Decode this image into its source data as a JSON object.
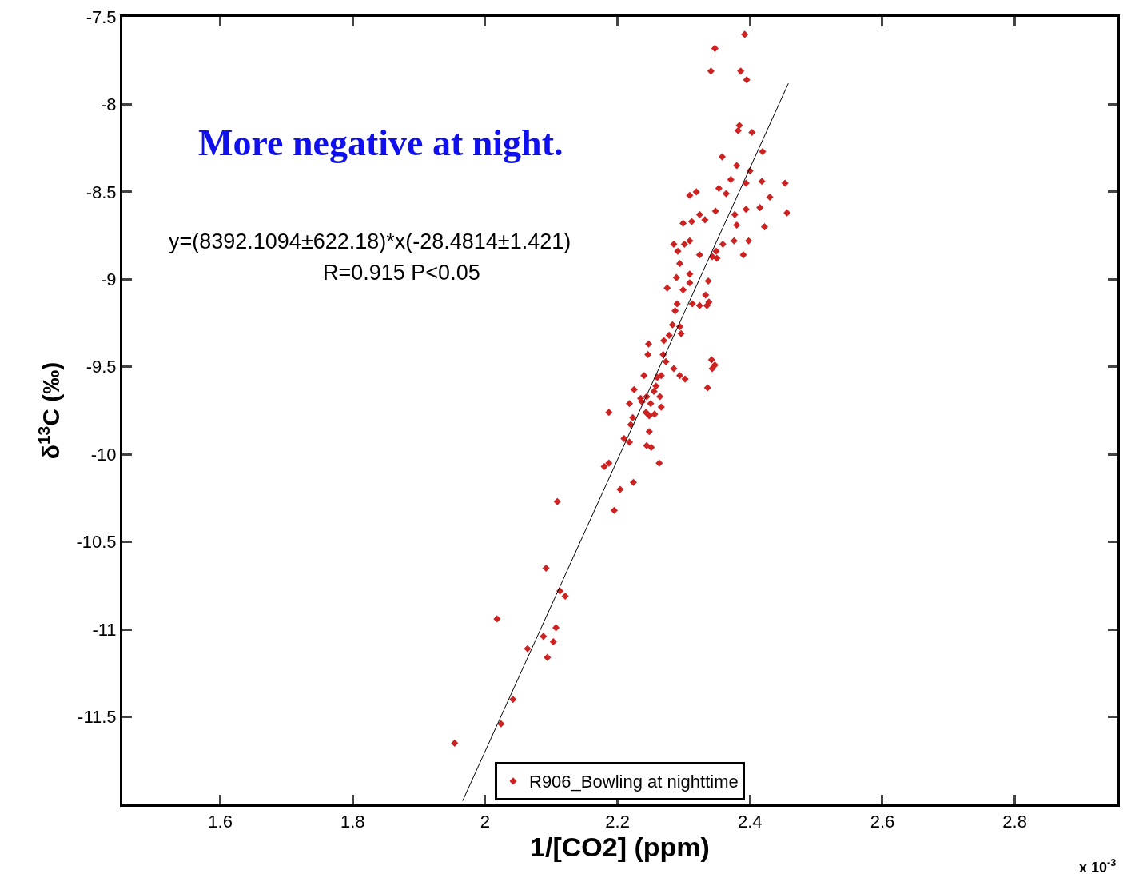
{
  "chart_data": {
    "type": "scatter",
    "xlabel": "1/[CO2] (ppm)",
    "ylabel": "δ$^{13}$C (‰)",
    "xlim": [
      1.452,
      2.955
    ],
    "xticks": [
      1.6,
      1.8,
      2,
      2.2,
      2.4,
      2.6,
      2.8
    ],
    "ylim": [
      -12,
      -7.5
    ],
    "yticks": [
      -7.5,
      -8,
      -8.5,
      -9,
      -9.5,
      -10,
      -10.5,
      -11,
      -11.5
    ],
    "grid": false,
    "legend": "bottom",
    "marker": "diamond",
    "annotations": [
      "More negative at night.",
      "y=(8392.1094±622.18)*x(-28.4814±1.421)",
      "R=0.915 P<0.05",
      "x 10$^{-3}$"
    ],
    "series": [
      {
        "name": "R906_Bowling at nighttime",
        "color": "#cc2222",
        "x": [
          2.392,
          2.347,
          2.341,
          2.386,
          2.395,
          2.384,
          2.382,
          2.403,
          2.419,
          2.358,
          2.38,
          2.4,
          2.353,
          2.371,
          2.394,
          2.418,
          2.453,
          2.309,
          2.319,
          2.364,
          2.43,
          2.324,
          2.348,
          2.38,
          2.394,
          2.415,
          2.377,
          2.456,
          2.299,
          2.312,
          2.332,
          2.359,
          2.376,
          2.398,
          2.422,
          2.309,
          2.39,
          2.349,
          2.35,
          2.301,
          2.324,
          2.343,
          2.285,
          2.291,
          2.294,
          2.309,
          2.337,
          2.289,
          2.309,
          2.333,
          2.338,
          2.299,
          2.275,
          2.29,
          2.313,
          2.324,
          2.335,
          2.287,
          2.283,
          2.294,
          2.278,
          2.27,
          2.247,
          2.296,
          2.269,
          2.246,
          2.273,
          2.285,
          2.266,
          2.26,
          2.24,
          2.258,
          2.294,
          2.302,
          2.342,
          2.347,
          2.343,
          2.336,
          2.244,
          2.235,
          2.225,
          2.237,
          2.25,
          2.255,
          2.264,
          2.266,
          2.187,
          2.218,
          2.223,
          2.243,
          2.248,
          2.22,
          2.21,
          2.256,
          2.248,
          2.244,
          2.251,
          2.263,
          2.218,
          2.18,
          2.187,
          2.224,
          2.204,
          2.195,
          2.109,
          2.092,
          2.113,
          2.121,
          2.018,
          2.107,
          2.088,
          2.103,
          2.064,
          2.094,
          2.042,
          2.024,
          1.954
        ],
        "values": [
          -7.6,
          -7.68,
          -7.81,
          -7.81,
          -7.86,
          -8.12,
          -8.15,
          -8.16,
          -8.27,
          -8.3,
          -8.35,
          -8.38,
          -8.48,
          -8.43,
          -8.45,
          -8.44,
          -8.45,
          -8.52,
          -8.5,
          -8.51,
          -8.53,
          -8.63,
          -8.61,
          -8.69,
          -8.6,
          -8.59,
          -8.63,
          -8.62,
          -8.68,
          -8.67,
          -8.66,
          -8.8,
          -8.78,
          -8.78,
          -8.7,
          -8.78,
          -8.86,
          -8.84,
          -8.88,
          -8.8,
          -8.86,
          -8.87,
          -8.8,
          -8.84,
          -8.91,
          -8.97,
          -9.01,
          -8.99,
          -9.02,
          -9.09,
          -9.13,
          -9.06,
          -9.05,
          -9.14,
          -9.14,
          -9.15,
          -9.15,
          -9.18,
          -9.26,
          -9.27,
          -9.32,
          -9.35,
          -9.37,
          -9.31,
          -9.43,
          -9.43,
          -9.47,
          -9.51,
          -9.55,
          -9.56,
          -9.55,
          -9.61,
          -9.55,
          -9.57,
          -9.46,
          -9.49,
          -9.51,
          -9.62,
          -9.67,
          -9.68,
          -9.63,
          -9.7,
          -9.71,
          -9.64,
          -9.67,
          -9.73,
          -9.76,
          -9.71,
          -9.79,
          -9.76,
          -9.78,
          -9.83,
          -9.91,
          -9.77,
          -9.87,
          -9.95,
          -9.96,
          -10.05,
          -9.93,
          -10.07,
          -10.05,
          -10.16,
          -10.2,
          -10.32,
          -10.27,
          -10.65,
          -10.78,
          -10.81,
          -10.94,
          -10.99,
          -11.04,
          -11.07,
          -11.11,
          -11.16,
          -11.4,
          -11.54,
          -11.65
        ]
      },
      {
        "color": "#000000",
        "type": "line",
        "marker": "none",
        "x": [
          1.966,
          2.458
        ],
        "values": [
          -11.98,
          -7.88
        ]
      }
    ]
  }
}
